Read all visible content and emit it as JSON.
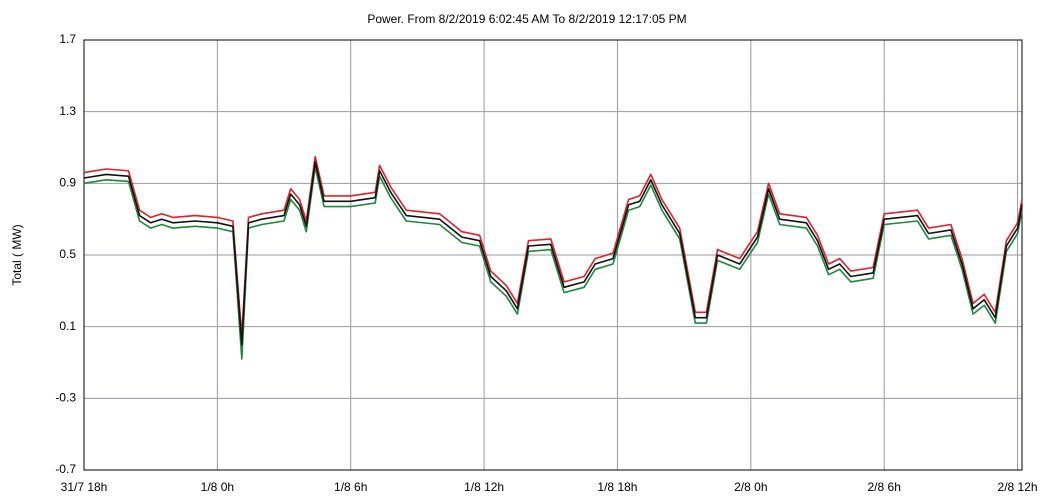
{
  "chart_data": {
    "type": "line",
    "title": "Power. From 8/2/2019 6:02:45 AM To 8/2/2019 12:17:05 PM",
    "y_label": "Total ( MW)",
    "x": [
      0,
      1,
      2,
      2.5,
      3,
      3.5,
      4,
      5,
      6,
      6.7,
      7.1,
      7.4,
      8,
      9,
      9.3,
      9.7,
      10,
      10.4,
      10.8,
      12,
      13.1,
      13.3,
      13.8,
      14.5,
      16,
      17,
      17.8,
      18.3,
      19,
      19.5,
      20,
      21,
      21.6,
      22.5,
      23,
      23.8,
      24.5,
      25,
      25.5,
      26,
      26.8,
      27.5,
      28,
      28.5,
      29.5,
      30.3,
      30.8,
      31.3,
      32.5,
      33,
      33.5,
      34,
      34.5,
      35.5,
      36,
      37.5,
      38,
      39,
      39.5,
      40,
      40.5,
      41,
      41.5,
      42,
      42.2
    ],
    "series": [
      {
        "color": "#1a8a3a",
        "values": [
          0.9,
          0.92,
          0.91,
          0.69,
          0.65,
          0.67,
          0.65,
          0.66,
          0.65,
          0.63,
          -0.08,
          0.65,
          0.67,
          0.69,
          0.81,
          0.75,
          0.63,
          0.99,
          0.77,
          0.77,
          0.79,
          0.94,
          0.82,
          0.69,
          0.67,
          0.57,
          0.55,
          0.35,
          0.27,
          0.17,
          0.52,
          0.53,
          0.29,
          0.32,
          0.42,
          0.45,
          0.75,
          0.77,
          0.89,
          0.75,
          0.59,
          0.12,
          0.12,
          0.47,
          0.42,
          0.57,
          0.84,
          0.67,
          0.65,
          0.55,
          0.39,
          0.42,
          0.35,
          0.37,
          0.67,
          0.69,
          0.59,
          0.61,
          0.42,
          0.17,
          0.22,
          0.12,
          0.52,
          0.62,
          0.75
        ]
      },
      {
        "color": "#e0202a",
        "values": [
          0.96,
          0.98,
          0.97,
          0.75,
          0.71,
          0.73,
          0.71,
          0.72,
          0.71,
          0.69,
          0.05,
          0.71,
          0.73,
          0.75,
          0.87,
          0.81,
          0.69,
          1.05,
          0.83,
          0.83,
          0.85,
          1.0,
          0.88,
          0.75,
          0.73,
          0.63,
          0.61,
          0.41,
          0.33,
          0.23,
          0.58,
          0.59,
          0.35,
          0.38,
          0.48,
          0.51,
          0.81,
          0.83,
          0.95,
          0.81,
          0.65,
          0.18,
          0.18,
          0.53,
          0.48,
          0.63,
          0.9,
          0.73,
          0.71,
          0.61,
          0.45,
          0.48,
          0.41,
          0.43,
          0.73,
          0.75,
          0.65,
          0.67,
          0.48,
          0.23,
          0.28,
          0.18,
          0.58,
          0.68,
          0.81
        ]
      },
      {
        "color": "#111111",
        "values": [
          0.93,
          0.95,
          0.94,
          0.72,
          0.68,
          0.7,
          0.68,
          0.69,
          0.68,
          0.66,
          0.0,
          0.68,
          0.7,
          0.72,
          0.84,
          0.78,
          0.66,
          1.02,
          0.8,
          0.8,
          0.82,
          0.97,
          0.85,
          0.72,
          0.7,
          0.6,
          0.58,
          0.38,
          0.3,
          0.2,
          0.55,
          0.56,
          0.32,
          0.35,
          0.45,
          0.48,
          0.78,
          0.8,
          0.92,
          0.78,
          0.62,
          0.15,
          0.15,
          0.5,
          0.45,
          0.6,
          0.87,
          0.7,
          0.68,
          0.58,
          0.42,
          0.45,
          0.38,
          0.4,
          0.7,
          0.72,
          0.62,
          0.64,
          0.45,
          0.2,
          0.25,
          0.15,
          0.55,
          0.65,
          0.78
        ]
      }
    ],
    "xlim": [
      0,
      42.2
    ],
    "xticks": [
      {
        "value": 0,
        "label": "31/7 18h"
      },
      {
        "value": 6,
        "label": "1/8 0h"
      },
      {
        "value": 12,
        "label": "1/8 6h"
      },
      {
        "value": 18,
        "label": "1/8 12h"
      },
      {
        "value": 24,
        "label": "1/8 18h"
      },
      {
        "value": 30,
        "label": "2/8 0h"
      },
      {
        "value": 36,
        "label": "2/8 6h"
      },
      {
        "value": 42,
        "label": "2/8 12h"
      }
    ],
    "ylim": [
      -0.7,
      1.7
    ],
    "yticks": [
      -0.7,
      -0.3,
      0.1,
      0.5,
      0.9,
      1.3,
      1.7
    ],
    "grid": true
  }
}
